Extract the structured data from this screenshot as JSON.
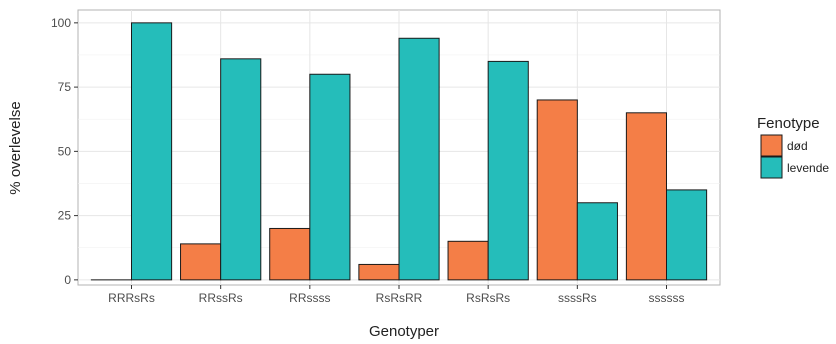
{
  "chart_data": {
    "type": "bar",
    "categories": [
      "RRRsRs",
      "RRssRs",
      "RRssss",
      "RsRsRR",
      "RsRsRs",
      "ssssRs",
      "ssssss"
    ],
    "series": [
      {
        "name": "død",
        "color": "#F47E47",
        "values": [
          0,
          14,
          20,
          6,
          15,
          70,
          65
        ]
      },
      {
        "name": "levende",
        "color": "#25BDBA",
        "values": [
          100,
          86,
          80,
          94,
          85,
          30,
          35
        ]
      }
    ],
    "xlabel": "Genotyper",
    "ylabel": "% overlevelse",
    "ylim": [
      -2,
      105
    ],
    "yticks": [
      0,
      25,
      50,
      75,
      100
    ],
    "legend": {
      "title": "Fenotype",
      "position": "right"
    },
    "grid": true
  }
}
